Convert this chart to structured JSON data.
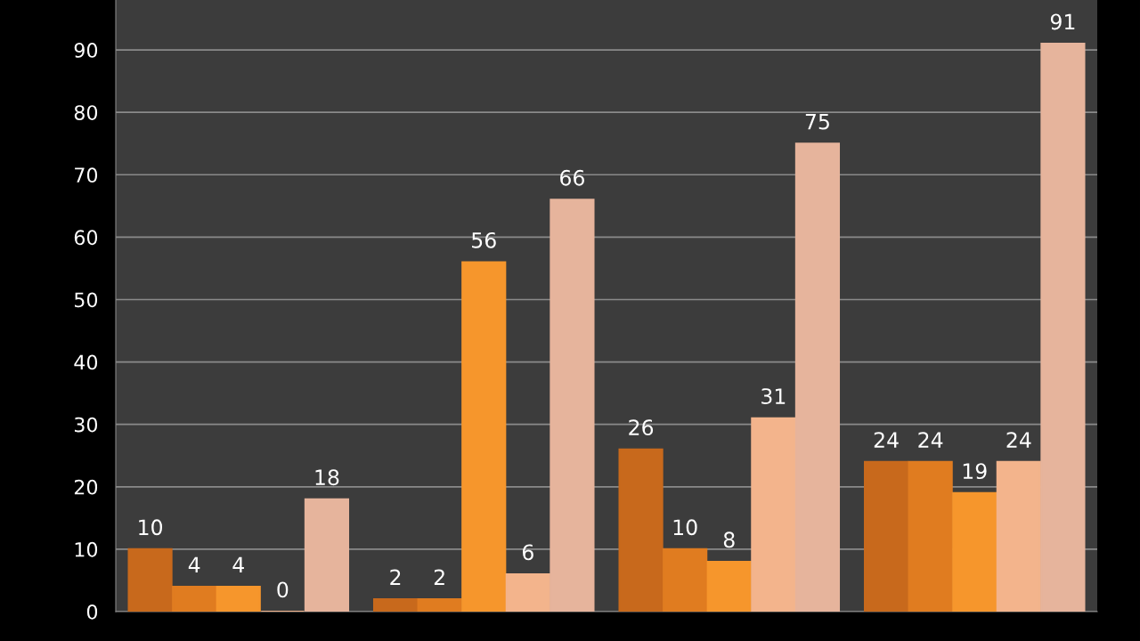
{
  "chart_data": {
    "type": "bar",
    "categories": [
      null,
      null,
      null,
      null
    ],
    "series": [
      {
        "color": "#c8691c",
        "values": [
          10,
          2,
          26,
          24
        ]
      },
      {
        "color": "#e07c20",
        "values": [
          4,
          2,
          10,
          24
        ]
      },
      {
        "color": "#f6962c",
        "values": [
          4,
          56,
          8,
          19
        ]
      },
      {
        "color": "#f3b48c",
        "values": [
          0,
          6,
          31,
          24
        ]
      },
      {
        "color": "#e6b49c",
        "values": [
          18,
          66,
          75,
          91
        ]
      }
    ],
    "ylim": [
      0,
      98
    ],
    "yticks": [
      0,
      10,
      20,
      30,
      40,
      50,
      60,
      70,
      80,
      90
    ],
    "grid": "y",
    "data_labels": true
  }
}
